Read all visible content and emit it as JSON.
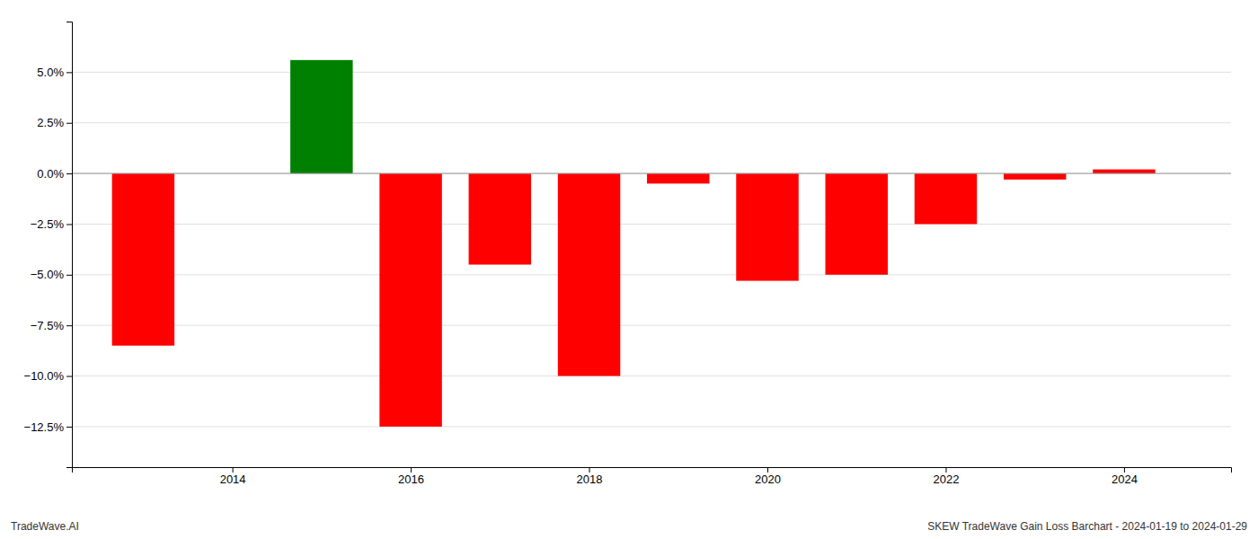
{
  "chart_data": {
    "type": "bar",
    "x": [
      2013,
      2015,
      2016,
      2017,
      2018,
      2019,
      2020,
      2021,
      2022,
      2023,
      2024
    ],
    "values": [
      -0.085,
      0.056,
      -0.125,
      -0.045,
      -0.1,
      -0.005,
      -0.053,
      -0.05,
      -0.025,
      -0.003,
      0.002
    ],
    "colors": [
      "#ff0000",
      "#008000",
      "#ff0000",
      "#ff0000",
      "#ff0000",
      "#ff0000",
      "#ff0000",
      "#ff0000",
      "#ff0000",
      "#ff0000",
      "#ff0000"
    ],
    "xlim": [
      2012.2,
      2025.2
    ],
    "xticks": [
      2014,
      2016,
      2018,
      2020,
      2022,
      2024
    ],
    "ylim": [
      -0.145,
      0.075
    ],
    "yticks": [
      {
        "value": -0.125,
        "label": "−12.5%"
      },
      {
        "value": -0.1,
        "label": "−10.0%"
      },
      {
        "value": -0.075,
        "label": "−7.5%"
      },
      {
        "value": -0.05,
        "label": "−5.0%"
      },
      {
        "value": -0.025,
        "label": "−2.5%"
      },
      {
        "value": 0.0,
        "label": "0.0%"
      },
      {
        "value": 0.025,
        "label": "2.5%"
      },
      {
        "value": 0.05,
        "label": "5.0%"
      }
    ],
    "grid": true,
    "annotations": [
      "TradeWave.AI",
      "SKEW TradeWave Gain Loss Barchart - 2024-01-19 to 2024-01-29"
    ]
  }
}
